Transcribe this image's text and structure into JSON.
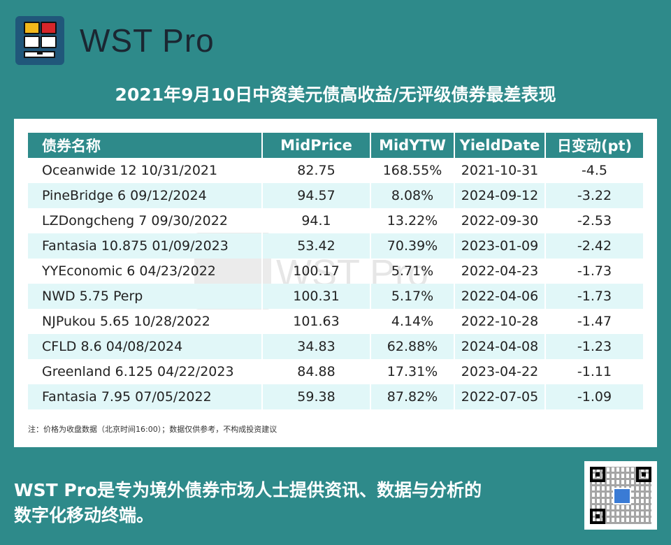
{
  "header": {
    "brand": "WST Pro"
  },
  "title": "2021年9月10日中资美元债高收益/无评级债券最差表现",
  "table": {
    "columns": [
      "债券名称",
      "MidPrice",
      "MidYTW",
      "YieldDate",
      "日变动(pt)"
    ],
    "rows": [
      [
        "Oceanwide 12 10/31/2021",
        "82.75",
        "168.55%",
        "2021-10-31",
        "-4.5"
      ],
      [
        "PineBridge 6 09/12/2024",
        "94.57",
        "8.08%",
        "2024-09-12",
        "-3.22"
      ],
      [
        "LZDongcheng 7 09/30/2022",
        "94.1",
        "13.22%",
        "2022-09-30",
        "-2.53"
      ],
      [
        "Fantasia 10.875 01/09/2023",
        "53.42",
        "70.39%",
        "2023-01-09",
        "-2.42"
      ],
      [
        "YYEconomic 6 04/23/2022",
        "100.17",
        "5.71%",
        "2022-04-23",
        "-1.73"
      ],
      [
        "NWD 5.75 Perp",
        "100.31",
        "5.17%",
        "2022-04-06",
        "-1.73"
      ],
      [
        "NJPukou 5.65 10/28/2022",
        "101.63",
        "4.14%",
        "2022-10-28",
        "-1.47"
      ],
      [
        "CFLD 8.6 04/08/2024",
        "34.83",
        "62.88%",
        "2024-04-08",
        "-1.23"
      ],
      [
        "Greenland 6.125 04/22/2023",
        "84.88",
        "17.31%",
        "2023-04-22",
        "-1.11"
      ],
      [
        "Fantasia 7.95 07/05/2022",
        "59.38",
        "87.82%",
        "2022-07-05",
        "-1.09"
      ]
    ]
  },
  "note": "注：价格为收盘数据（北京时间16:00）；数据仅供参考，不构成投资建议",
  "watermark": "WST Pro",
  "footer": {
    "line1": "WST Pro是专为境外债券市场人士提供资讯、数据与分析的",
    "line2": "数字化移动终端。"
  },
  "colors": {
    "background": "#2e8a8a",
    "header_row": "#2e8a8a",
    "alt_row": "#e1f7f8",
    "logo_bg": "#20577a"
  }
}
